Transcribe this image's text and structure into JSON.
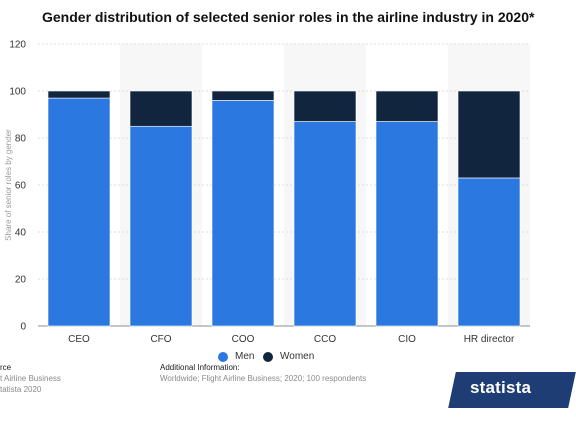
{
  "chart_data": {
    "type": "bar",
    "stacked": true,
    "title": "Gender distribution of selected senior roles in the airline industry in 2020*",
    "ylabel": "Share of senior roles by gender",
    "xlabel": "",
    "ylim": [
      0,
      120
    ],
    "yticks": [
      0,
      20,
      40,
      60,
      80,
      100,
      120
    ],
    "grid": true,
    "legend_position": "bottom-center",
    "categories": [
      "CEO",
      "CFO",
      "COO",
      "CCO",
      "CIO",
      "HR director"
    ],
    "series": [
      {
        "name": "Men",
        "color": "#2b78e0",
        "values": [
          97,
          85,
          96,
          87,
          87,
          63
        ]
      },
      {
        "name": "Women",
        "color": "#12253f",
        "values": [
          3,
          15,
          4,
          13,
          13,
          37
        ]
      }
    ]
  },
  "footer": {
    "source_head": "rce",
    "source_line1": "t Airline Business",
    "source_line2": "tatista 2020",
    "info_head": "Additional Information:",
    "info_line1": "Worldwide; Flight Airline Business; 2020; 100 respondents"
  },
  "brand": {
    "logo_text": "statista"
  }
}
